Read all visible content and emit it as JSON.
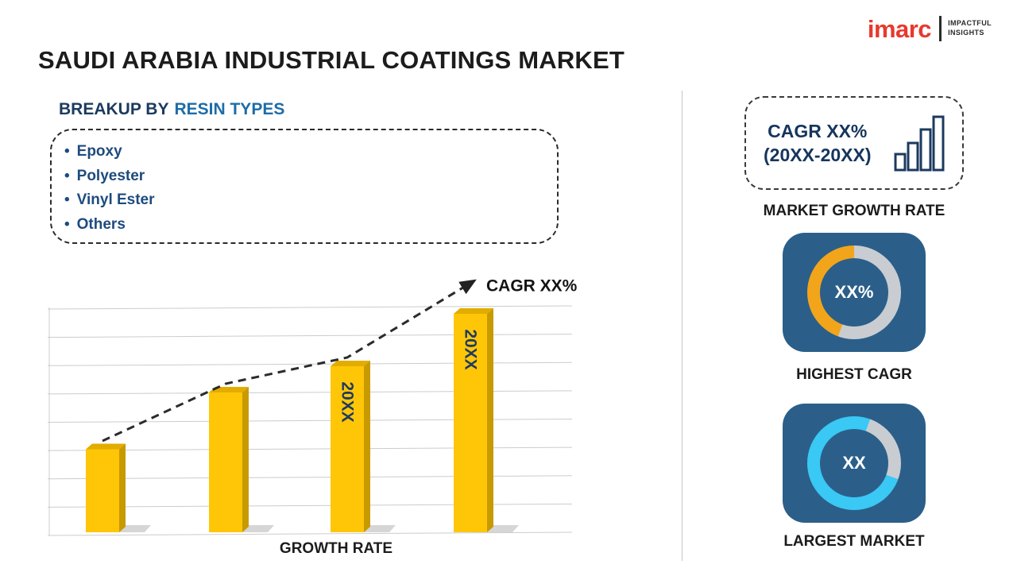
{
  "header": {
    "title": "SAUDI ARABIA INDUSTRIAL COATINGS MARKET"
  },
  "logo": {
    "brand": "imarc",
    "tagline_line1": "IMPACTFUL",
    "tagline_line2": "INSIGHTS",
    "brand_color": "#E8392D"
  },
  "breakup": {
    "heading_prefix": "BREAKUP BY",
    "heading_highlight": "RESIN TYPES",
    "items": [
      "Epoxy",
      "Polyester",
      "Vinyl Ester",
      "Others"
    ]
  },
  "chart_data": {
    "type": "bar",
    "title": "",
    "categories": [
      "",
      "",
      "20XX",
      "20XX"
    ],
    "values": [
      38,
      64,
      76,
      100
    ],
    "bar_labels": [
      "",
      "",
      "20XX",
      "20XX"
    ],
    "xlabel": "GROWTH RATE",
    "ylabel": "",
    "ylim": [
      0,
      100
    ],
    "grid": true,
    "legend": "none",
    "bar_color": "#FFC608",
    "bar_top_color": "#E2AC00",
    "bar_side_color": "#C79A00",
    "trend": {
      "label": "CAGR XX%",
      "style": "dashed-arrow",
      "color": "#2b2b2b"
    }
  },
  "sidebar": {
    "growth_box": {
      "line1": "CAGR XX%",
      "line2": "(20XX-20XX)"
    },
    "market_growth_label": "MARKET GROWTH RATE",
    "tiles": [
      {
        "value": "XX%",
        "label": "HIGHEST CAGR",
        "ring_base": "#C9CDD1",
        "accent": "#F2A51B",
        "accent_start": 200,
        "accent_end": 360
      },
      {
        "value": "XX",
        "label": "LARGEST MARKET",
        "ring_base": "#3AC8F5",
        "accent": "#C9CDD1",
        "accent_start": 20,
        "accent_end": 110
      }
    ]
  }
}
